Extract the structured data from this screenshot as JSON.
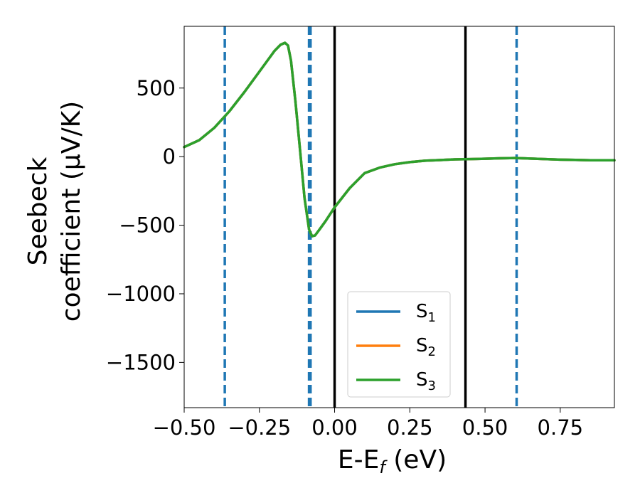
{
  "chart_data": {
    "type": "line",
    "xlabel": "E-E_f (eV)",
    "xlabel_parts": {
      "main": "E-E",
      "sub": "f",
      "rest": " (eV)"
    },
    "ylabel_line1": "Seebeck",
    "ylabel_line2": "coefficient  (μV/K)",
    "xlim": [
      -0.5,
      0.93
    ],
    "ylim": [
      -1830,
      950
    ],
    "xticks": [
      -0.5,
      -0.25,
      0.0,
      0.25,
      0.5,
      0.75
    ],
    "xtick_labels": [
      "−0.50",
      "−0.25",
      "0.00",
      "0.25",
      "0.50",
      "0.75"
    ],
    "yticks": [
      500,
      0,
      -500,
      -1000,
      -1500
    ],
    "ytick_labels": [
      "500",
      "0",
      "−500",
      "−1000",
      "−1500"
    ],
    "grid": false,
    "legend_position": "lower-center",
    "series": [
      {
        "name": "S1",
        "label_main": "S",
        "label_sub": "1",
        "color": "#1f77b4"
      },
      {
        "name": "S2",
        "label_main": "S",
        "label_sub": "2",
        "color": "#ff7f0e"
      },
      {
        "name": "S3",
        "label_main": "S",
        "label_sub": "3",
        "color": "#2ca02c"
      }
    ],
    "curve": {
      "x": [
        -0.5,
        -0.45,
        -0.4,
        -0.35,
        -0.3,
        -0.25,
        -0.2,
        -0.18,
        -0.165,
        -0.155,
        -0.145,
        -0.13,
        -0.115,
        -0.1,
        -0.085,
        -0.075,
        -0.065,
        -0.05,
        -0.03,
        0.0,
        0.05,
        0.1,
        0.15,
        0.2,
        0.25,
        0.3,
        0.35,
        0.4,
        0.45,
        0.5,
        0.55,
        0.6,
        0.65,
        0.7,
        0.75,
        0.8,
        0.85,
        0.93
      ],
      "y": [
        70,
        120,
        210,
        330,
        470,
        620,
        770,
        815,
        830,
        810,
        700,
        400,
        50,
        -300,
        -530,
        -580,
        -575,
        -530,
        -470,
        -370,
        -230,
        -120,
        -80,
        -55,
        -40,
        -30,
        -25,
        -20,
        -18,
        -15,
        -12,
        -10,
        -14,
        -18,
        -22,
        -24,
        -26,
        -26
      ]
    },
    "vlines": [
      {
        "x": -0.365,
        "style": "dashed",
        "color": "#1f77b4"
      },
      {
        "x": -0.085,
        "style": "dashed",
        "color": "#1f77b4"
      },
      {
        "x": -0.08,
        "style": "dashed",
        "color": "#1f77b4"
      },
      {
        "x": 0.0,
        "style": "solid",
        "color": "#000000"
      },
      {
        "x": 0.435,
        "style": "solid",
        "color": "#000000"
      },
      {
        "x": 0.605,
        "style": "dashed",
        "color": "#1f77b4"
      }
    ]
  }
}
